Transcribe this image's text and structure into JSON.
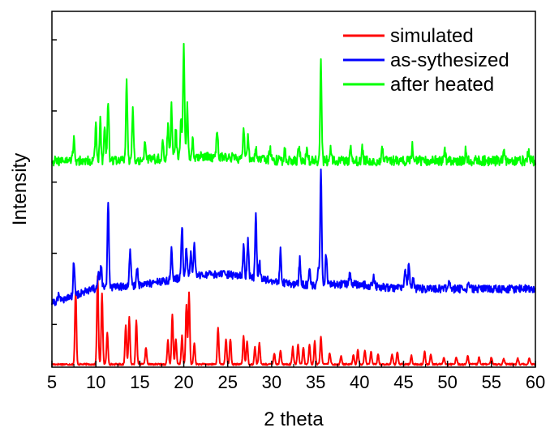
{
  "chart_data": {
    "type": "line",
    "title": "",
    "xlabel": "2 theta",
    "ylabel": "Intensity",
    "xlim": [
      5,
      60
    ],
    "x_ticks": [
      5,
      10,
      15,
      20,
      25,
      30,
      35,
      40,
      45,
      50,
      55,
      60
    ],
    "y_ticks_labeled": false,
    "grid": false,
    "legend_position": "top-right",
    "series": [
      {
        "name": "simulated",
        "color": "#ff0000",
        "baseline": 0.02,
        "peaks": [
          [
            7.7,
            0.52
          ],
          [
            10.2,
            0.62
          ],
          [
            10.7,
            0.5
          ],
          [
            11.3,
            0.22
          ],
          [
            13.4,
            0.28
          ],
          [
            13.8,
            0.33
          ],
          [
            14.6,
            0.31
          ],
          [
            15.7,
            0.12
          ],
          [
            18.2,
            0.17
          ],
          [
            18.7,
            0.35
          ],
          [
            19.1,
            0.18
          ],
          [
            19.8,
            0.2
          ],
          [
            20.3,
            0.42
          ],
          [
            20.6,
            0.5
          ],
          [
            21.2,
            0.15
          ],
          [
            23.9,
            0.26
          ],
          [
            24.8,
            0.18
          ],
          [
            25.3,
            0.18
          ],
          [
            26.8,
            0.2
          ],
          [
            27.2,
            0.16
          ],
          [
            28.1,
            0.12
          ],
          [
            28.6,
            0.15
          ],
          [
            30.3,
            0.08
          ],
          [
            31.0,
            0.1
          ],
          [
            32.4,
            0.12
          ],
          [
            33.0,
            0.14
          ],
          [
            33.6,
            0.12
          ],
          [
            34.3,
            0.14
          ],
          [
            34.9,
            0.16
          ],
          [
            35.6,
            0.2
          ],
          [
            36.6,
            0.08
          ],
          [
            37.9,
            0.06
          ],
          [
            39.3,
            0.07
          ],
          [
            39.8,
            0.1
          ],
          [
            40.6,
            0.1
          ],
          [
            41.3,
            0.09
          ],
          [
            42.1,
            0.07
          ],
          [
            43.7,
            0.07
          ],
          [
            44.3,
            0.09
          ],
          [
            45.9,
            0.06
          ],
          [
            47.4,
            0.09
          ],
          [
            48.1,
            0.07
          ],
          [
            49.6,
            0.05
          ],
          [
            51.0,
            0.05
          ],
          [
            52.3,
            0.06
          ],
          [
            53.6,
            0.05
          ],
          [
            55.0,
            0.05
          ],
          [
            56.4,
            0.04
          ],
          [
            58.0,
            0.04
          ],
          [
            59.3,
            0.04
          ]
        ]
      },
      {
        "name": "as-sythesized",
        "color": "#0000ff",
        "baseline": 0.55,
        "peaks": [
          [
            5.8,
            0.06
          ],
          [
            7.5,
            0.25
          ],
          [
            10.3,
            0.1
          ],
          [
            10.6,
            0.16
          ],
          [
            11.4,
            0.61
          ],
          [
            13.9,
            0.26
          ],
          [
            14.7,
            0.12
          ],
          [
            18.6,
            0.22
          ],
          [
            19.8,
            0.38
          ],
          [
            20.3,
            0.22
          ],
          [
            20.8,
            0.16
          ],
          [
            21.2,
            0.22
          ],
          [
            26.8,
            0.2
          ],
          [
            27.3,
            0.26
          ],
          [
            28.2,
            0.44
          ],
          [
            28.6,
            0.12
          ],
          [
            31.0,
            0.22
          ],
          [
            33.2,
            0.18
          ],
          [
            34.3,
            0.1
          ],
          [
            35.3,
            0.14
          ],
          [
            35.6,
            0.82
          ],
          [
            36.2,
            0.22
          ],
          [
            38.9,
            0.08
          ],
          [
            41.6,
            0.08
          ],
          [
            45.2,
            0.14
          ],
          [
            45.6,
            0.18
          ],
          [
            46.1,
            0.08
          ],
          [
            50.2,
            0.06
          ],
          [
            52.4,
            0.06
          ]
        ]
      },
      {
        "name": "after heated",
        "color": "#00ff00",
        "baseline": 1.45,
        "peaks": [
          [
            7.5,
            0.16
          ],
          [
            10.0,
            0.24
          ],
          [
            10.5,
            0.28
          ],
          [
            11.0,
            0.24
          ],
          [
            11.4,
            0.42
          ],
          [
            13.5,
            0.56
          ],
          [
            14.2,
            0.34
          ],
          [
            15.6,
            0.12
          ],
          [
            17.6,
            0.1
          ],
          [
            18.2,
            0.22
          ],
          [
            18.6,
            0.36
          ],
          [
            19.1,
            0.2
          ],
          [
            19.7,
            0.3
          ],
          [
            20.0,
            0.77
          ],
          [
            20.4,
            0.36
          ],
          [
            21.0,
            0.12
          ],
          [
            23.8,
            0.18
          ],
          [
            26.8,
            0.22
          ],
          [
            27.3,
            0.16
          ],
          [
            28.2,
            0.1
          ],
          [
            29.8,
            0.08
          ],
          [
            31.5,
            0.08
          ],
          [
            33.1,
            0.12
          ],
          [
            34.0,
            0.1
          ],
          [
            35.6,
            0.7
          ],
          [
            36.7,
            0.1
          ],
          [
            39.0,
            0.08
          ],
          [
            40.3,
            0.1
          ],
          [
            42.6,
            0.08
          ],
          [
            46.0,
            0.1
          ],
          [
            49.7,
            0.07
          ],
          [
            52.1,
            0.08
          ],
          [
            56.4,
            0.1
          ],
          [
            59.2,
            0.06
          ]
        ]
      }
    ]
  }
}
